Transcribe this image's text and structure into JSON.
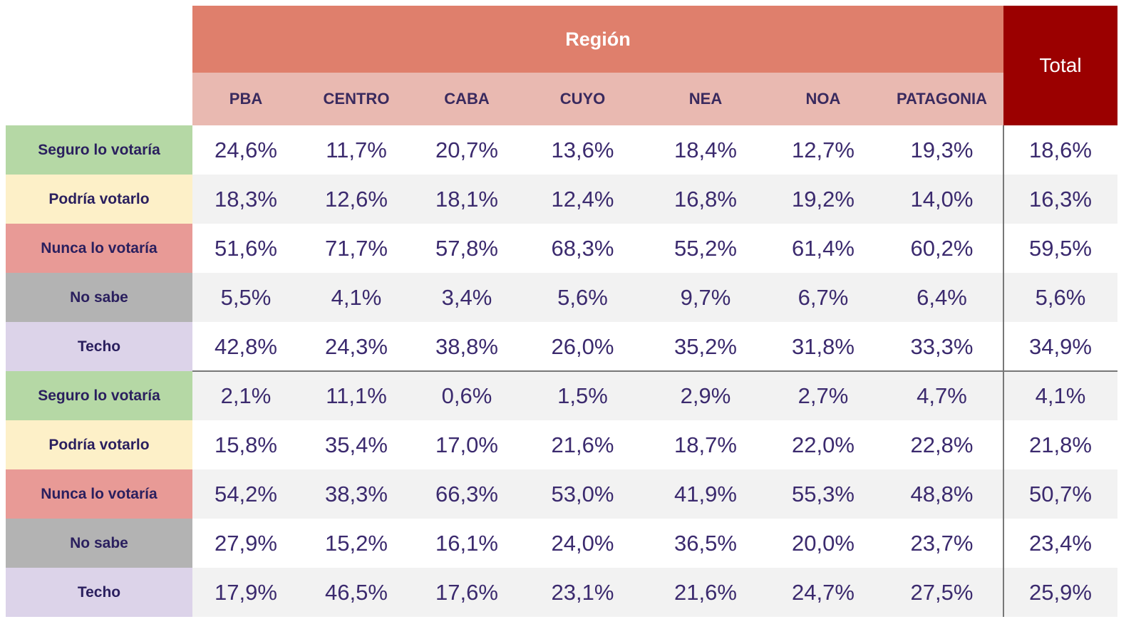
{
  "header": {
    "title": "Región",
    "total": "Total"
  },
  "columns": [
    "PBA",
    "CENTRO",
    "CABA",
    "CUYO",
    "NEA",
    "NOA",
    "PATAGONIA"
  ],
  "rows": [
    {
      "label": "Seguro lo votaría",
      "values": [
        "24,6%",
        "11,7%",
        "20,7%",
        "13,6%",
        "18,4%",
        "12,7%",
        "19,3%",
        "18,6%"
      ]
    },
    {
      "label": "Podría votarlo",
      "values": [
        "18,3%",
        "12,6%",
        "18,1%",
        "12,4%",
        "16,8%",
        "19,2%",
        "14,0%",
        "16,3%"
      ]
    },
    {
      "label": "Nunca lo votaría",
      "values": [
        "51,6%",
        "71,7%",
        "57,8%",
        "68,3%",
        "55,2%",
        "61,4%",
        "60,2%",
        "59,5%"
      ]
    },
    {
      "label": "No sabe",
      "values": [
        "5,5%",
        "4,1%",
        "3,4%",
        "5,6%",
        "9,7%",
        "6,7%",
        "6,4%",
        "5,6%"
      ]
    },
    {
      "label": "Techo",
      "values": [
        "42,8%",
        "24,3%",
        "38,8%",
        "26,0%",
        "35,2%",
        "31,8%",
        "33,3%",
        "34,9%"
      ]
    },
    {
      "label": "Seguro lo votaría",
      "values": [
        "2,1%",
        "11,1%",
        "0,6%",
        "1,5%",
        "2,9%",
        "2,7%",
        "4,7%",
        "4,1%"
      ]
    },
    {
      "label": "Podría votarlo",
      "values": [
        "15,8%",
        "35,4%",
        "17,0%",
        "21,6%",
        "18,7%",
        "22,0%",
        "22,8%",
        "21,8%"
      ]
    },
    {
      "label": "Nunca lo votaría",
      "values": [
        "54,2%",
        "38,3%",
        "66,3%",
        "53,0%",
        "41,9%",
        "55,3%",
        "48,8%",
        "50,7%"
      ]
    },
    {
      "label": "No sabe",
      "values": [
        "27,9%",
        "15,2%",
        "16,1%",
        "24,0%",
        "36,5%",
        "20,0%",
        "23,7%",
        "23,4%"
      ]
    },
    {
      "label": "Techo",
      "values": [
        "17,9%",
        "46,5%",
        "17,6%",
        "23,1%",
        "21,6%",
        "24,7%",
        "27,5%",
        "25,9%"
      ]
    }
  ]
}
